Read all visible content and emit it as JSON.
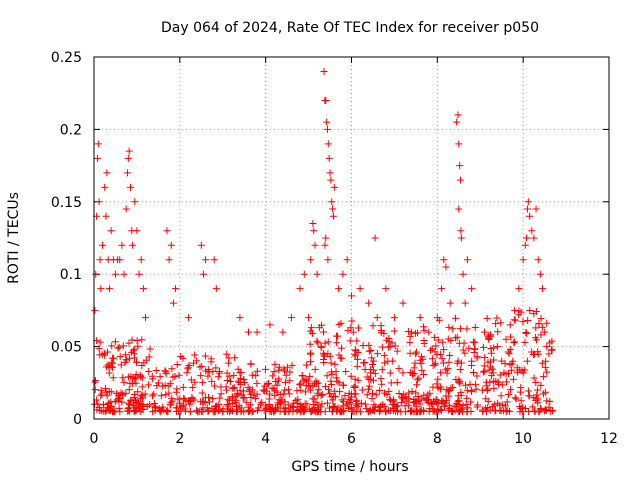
{
  "chart_data": {
    "type": "scatter",
    "title": "Day 064 of 2024, Rate Of TEC Index for receiver p050",
    "xlabel": "GPS time / hours",
    "ylabel": "ROTI / TECUs",
    "xlim": [
      0,
      12
    ],
    "ylim": [
      0,
      0.25
    ],
    "x_ticks": [
      0,
      2,
      4,
      6,
      8,
      10,
      12
    ],
    "x_tick_labels": [
      "0",
      "2",
      "4",
      "6",
      "8",
      "10",
      "12"
    ],
    "y_ticks": [
      0,
      0.05,
      0.1,
      0.15,
      0.2,
      0.25
    ],
    "y_tick_labels": [
      "0",
      "0.05",
      "0.1",
      "0.15",
      "0.2",
      "0.25"
    ],
    "grid": true,
    "marker": "+",
    "marker_color": "#ff0000",
    "series": [
      {
        "name": "ROTI",
        "points": [
          [
            0.02,
            0.075
          ],
          [
            0.04,
            0.1
          ],
          [
            0.06,
            0.14
          ],
          [
            0.08,
            0.18
          ],
          [
            0.1,
            0.19
          ],
          [
            0.12,
            0.15
          ],
          [
            0.14,
            0.11
          ],
          [
            0.16,
            0.09
          ],
          [
            0.2,
            0.12
          ],
          [
            0.25,
            0.16
          ],
          [
            0.28,
            0.14
          ],
          [
            0.3,
            0.17
          ],
          [
            0.33,
            0.11
          ],
          [
            0.36,
            0.09
          ],
          [
            0.4,
            0.13
          ],
          [
            0.45,
            0.11
          ],
          [
            0.5,
            0.1
          ],
          [
            0.55,
            0.11
          ],
          [
            0.6,
            0.11
          ],
          [
            0.65,
            0.12
          ],
          [
            0.7,
            0.1
          ],
          [
            0.75,
            0.145
          ],
          [
            0.78,
            0.17
          ],
          [
            0.8,
            0.18
          ],
          [
            0.82,
            0.185
          ],
          [
            0.85,
            0.16
          ],
          [
            0.88,
            0.13
          ],
          [
            0.9,
            0.12
          ],
          [
            0.95,
            0.15
          ],
          [
            1.0,
            0.13
          ],
          [
            1.05,
            0.1
          ],
          [
            1.1,
            0.11
          ],
          [
            1.15,
            0.09
          ],
          [
            1.2,
            0.07
          ],
          [
            1.7,
            0.13
          ],
          [
            1.75,
            0.11
          ],
          [
            1.8,
            0.12
          ],
          [
            1.85,
            0.08
          ],
          [
            1.9,
            0.09
          ],
          [
            2.2,
            0.07
          ],
          [
            2.5,
            0.12
          ],
          [
            2.55,
            0.1
          ],
          [
            2.6,
            0.11
          ],
          [
            2.8,
            0.11
          ],
          [
            2.85,
            0.09
          ],
          [
            3.4,
            0.07
          ],
          [
            3.6,
            0.06
          ],
          [
            3.8,
            0.06
          ],
          [
            4.1,
            0.065
          ],
          [
            4.4,
            0.06
          ],
          [
            4.6,
            0.07
          ],
          [
            4.8,
            0.09
          ],
          [
            4.9,
            0.1
          ],
          [
            5.0,
            0.07
          ],
          [
            5.05,
            0.11
          ],
          [
            5.1,
            0.135
          ],
          [
            5.12,
            0.13
          ],
          [
            5.15,
            0.12
          ],
          [
            5.2,
            0.1
          ],
          [
            5.36,
            0.24
          ],
          [
            5.38,
            0.22
          ],
          [
            5.4,
            0.22
          ],
          [
            5.42,
            0.205
          ],
          [
            5.44,
            0.2
          ],
          [
            5.46,
            0.19
          ],
          [
            5.48,
            0.18
          ],
          [
            5.5,
            0.17
          ],
          [
            5.52,
            0.165
          ],
          [
            5.54,
            0.15
          ],
          [
            5.56,
            0.145
          ],
          [
            5.58,
            0.14
          ],
          [
            5.6,
            0.16
          ],
          [
            5.4,
            0.125
          ],
          [
            5.38,
            0.12
          ],
          [
            5.45,
            0.11
          ],
          [
            5.7,
            0.09
          ],
          [
            5.8,
            0.1
          ],
          [
            5.9,
            0.11
          ],
          [
            6.0,
            0.085
          ],
          [
            6.2,
            0.09
          ],
          [
            6.4,
            0.08
          ],
          [
            6.55,
            0.125
          ],
          [
            6.6,
            0.07
          ],
          [
            6.8,
            0.09
          ],
          [
            7.0,
            0.07
          ],
          [
            7.2,
            0.08
          ],
          [
            7.4,
            0.06
          ],
          [
            7.6,
            0.07
          ],
          [
            7.8,
            0.06
          ],
          [
            8.0,
            0.07
          ],
          [
            8.1,
            0.09
          ],
          [
            8.15,
            0.11
          ],
          [
            8.2,
            0.105
          ],
          [
            8.3,
            0.08
          ],
          [
            8.45,
            0.205
          ],
          [
            8.48,
            0.21
          ],
          [
            8.5,
            0.19
          ],
          [
            8.52,
            0.175
          ],
          [
            8.54,
            0.165
          ],
          [
            8.5,
            0.145
          ],
          [
            8.55,
            0.13
          ],
          [
            8.56,
            0.125
          ],
          [
            8.6,
            0.1
          ],
          [
            8.65,
            0.08
          ],
          [
            8.7,
            0.11
          ],
          [
            8.8,
            0.09
          ],
          [
            9.1,
            0.06
          ],
          [
            9.2,
            0.055
          ],
          [
            9.4,
            0.05
          ],
          [
            9.5,
            0.04
          ],
          [
            9.6,
            0.055
          ],
          [
            9.7,
            0.065
          ],
          [
            9.8,
            0.075
          ],
          [
            9.9,
            0.09
          ],
          [
            10.0,
            0.11
          ],
          [
            10.05,
            0.12
          ],
          [
            10.08,
            0.125
          ],
          [
            10.1,
            0.145
          ],
          [
            10.12,
            0.15
          ],
          [
            10.15,
            0.14
          ],
          [
            10.2,
            0.13
          ],
          [
            10.25,
            0.125
          ],
          [
            10.3,
            0.145
          ],
          [
            10.35,
            0.11
          ],
          [
            10.4,
            0.1
          ],
          [
            10.45,
            0.09
          ],
          [
            10.5,
            0.06
          ],
          [
            10.55,
            0.05
          ],
          [
            10.6,
            0.045
          ]
        ],
        "dense_clusters": [
          {
            "x_range": [
              0.0,
              1.4
            ],
            "y_range": [
              0.005,
              0.055
            ],
            "count": 160
          },
          {
            "x_range": [
              1.4,
              3.3
            ],
            "y_range": [
              0.005,
              0.045
            ],
            "count": 160
          },
          {
            "x_range": [
              3.3,
              5.0
            ],
            "y_range": [
              0.005,
              0.04
            ],
            "count": 170
          },
          {
            "x_range": [
              5.0,
              6.2
            ],
            "y_range": [
              0.005,
              0.07
            ],
            "count": 160
          },
          {
            "x_range": [
              6.2,
              8.0
            ],
            "y_range": [
              0.005,
              0.065
            ],
            "count": 200
          },
          {
            "x_range": [
              8.0,
              8.95
            ],
            "y_range": [
              0.005,
              0.07
            ],
            "count": 110
          },
          {
            "x_range": [
              9.05,
              10.7
            ],
            "y_range": [
              0.005,
              0.075
            ],
            "count": 170
          }
        ]
      }
    ]
  }
}
